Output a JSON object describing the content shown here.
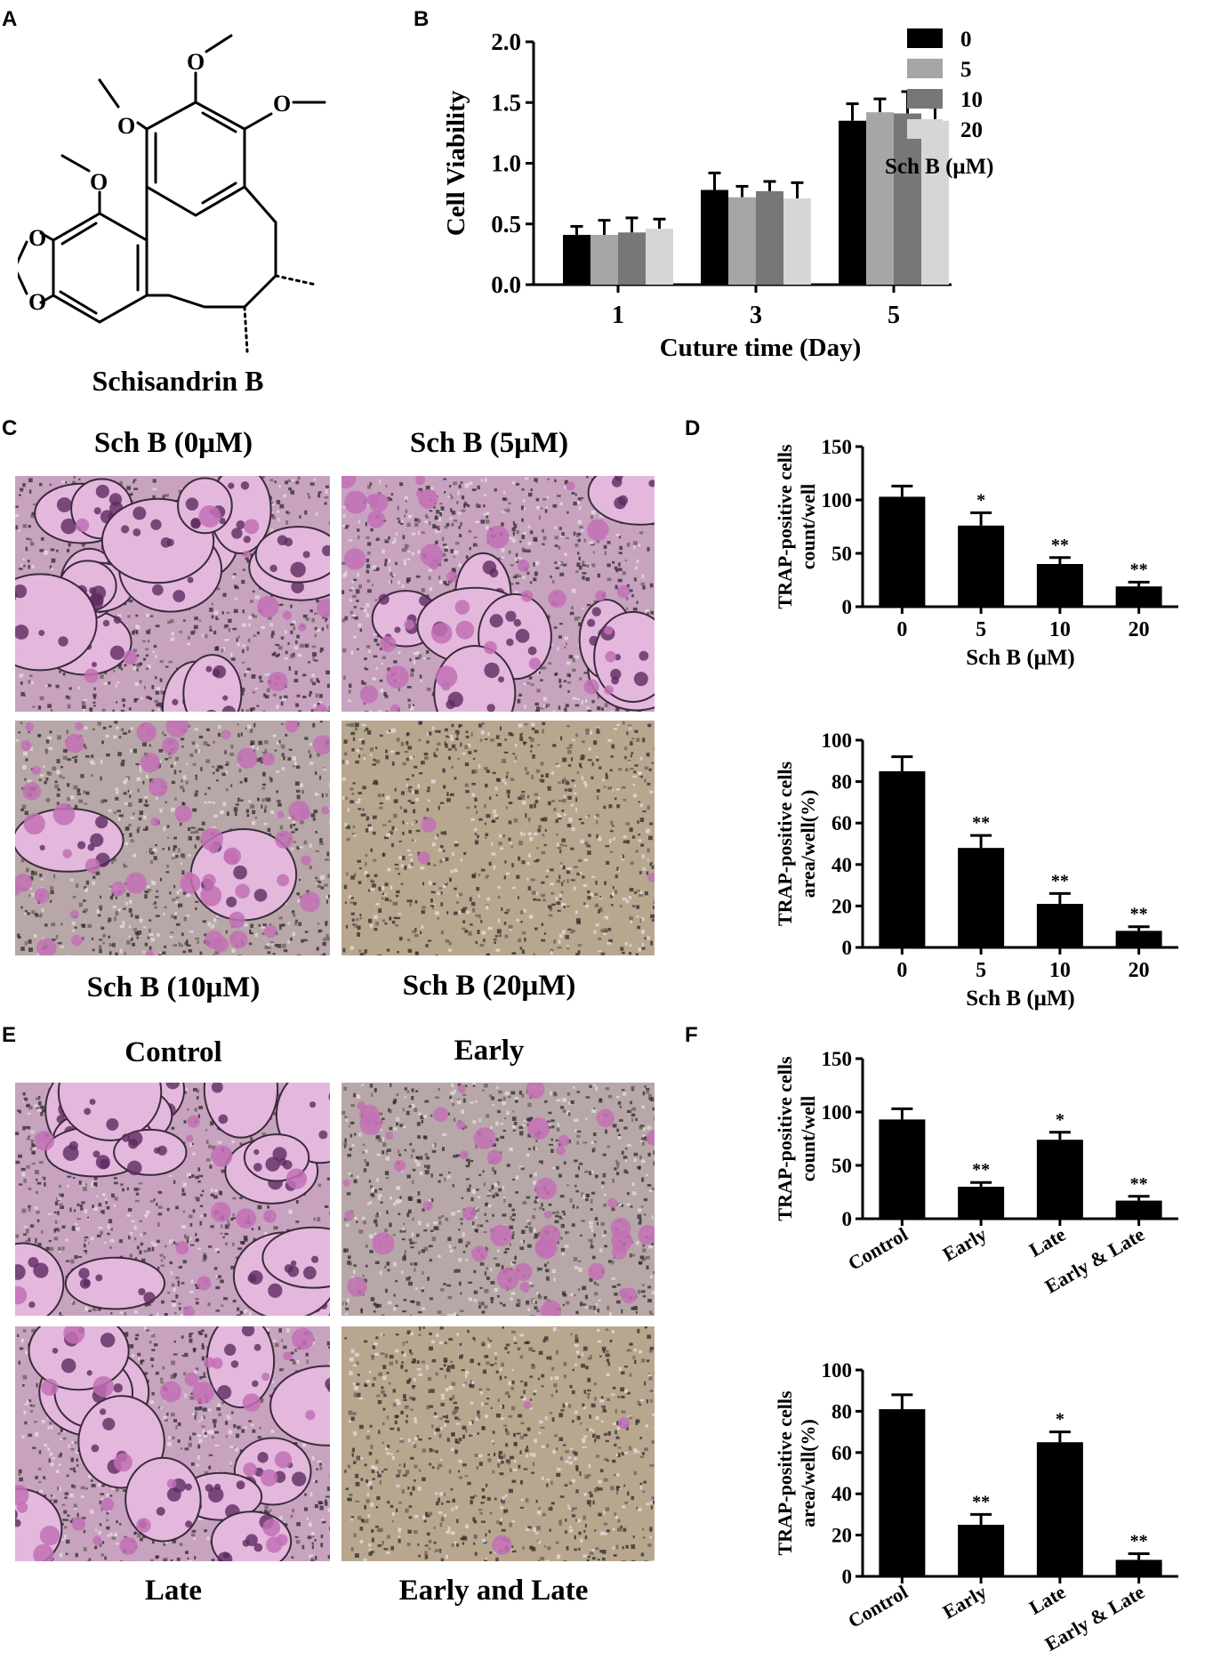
{
  "panels": {
    "A": {
      "letter": "A",
      "compound_name": "Schisandrin B"
    },
    "B": {
      "letter": "B"
    },
    "C": {
      "letter": "C",
      "captions": [
        "Sch B (0μM)",
        "Sch B (5μM)",
        "Sch B (10μM)",
        "Sch B (20μM)"
      ]
    },
    "D": {
      "letter": "D"
    },
    "E": {
      "letter": "E",
      "captions": [
        "Control",
        "Early",
        "Late",
        "Early and Late"
      ]
    },
    "F": {
      "letter": "F"
    }
  },
  "molecule_labels": {
    "methoxy": "O",
    "bridge_o": "O"
  },
  "colors": {
    "black": "#000000",
    "grey_dark": "#777777",
    "grey_mid": "#a6a6a6",
    "grey_light": "#d6d6d6",
    "stain_purple": "#7a3a78",
    "stain_pink": "#d9a3cf",
    "background_tan": "#b8a78f"
  },
  "chart_data": [
    {
      "id": "B",
      "type": "bar",
      "categories": [
        "1",
        "3",
        "5"
      ],
      "xlabel": "Cuture time (Day)",
      "ylabel": "Cell Viability",
      "ylim": [
        0,
        2.0
      ],
      "yticks": [
        "0.0",
        "0.5",
        "1.0",
        "1.5",
        "2.0"
      ],
      "legend_title": "Sch B (μM)",
      "legend_placement": "right",
      "series": [
        {
          "name": "0",
          "color": "#000000",
          "values": [
            0.41,
            0.78,
            1.35
          ],
          "errors": [
            0.07,
            0.14,
            0.14
          ]
        },
        {
          "name": "5",
          "color": "#a6a6a6",
          "values": [
            0.41,
            0.72,
            1.42
          ],
          "errors": [
            0.12,
            0.09,
            0.11
          ]
        },
        {
          "name": "10",
          "color": "#777777",
          "values": [
            0.43,
            0.77,
            1.41
          ],
          "errors": [
            0.12,
            0.08,
            0.18
          ]
        },
        {
          "name": "20",
          "color": "#d6d6d6",
          "values": [
            0.46,
            0.71,
            1.35
          ],
          "errors": [
            0.08,
            0.13,
            0.11
          ]
        }
      ]
    },
    {
      "id": "D1",
      "type": "bar",
      "categories": [
        "0",
        "5",
        "10",
        "20"
      ],
      "xlabel": "Sch B (μM)",
      "ylabel": [
        "TRAP-positive cells",
        "count/well"
      ],
      "ylim": [
        0,
        150
      ],
      "yticks": [
        "0",
        "50",
        "100",
        "150"
      ],
      "values": [
        103,
        76,
        40,
        19
      ],
      "errors": [
        10,
        12,
        6,
        4
      ],
      "significance": [
        "",
        "*",
        "**",
        "**"
      ]
    },
    {
      "id": "D2",
      "type": "bar",
      "categories": [
        "0",
        "5",
        "10",
        "20"
      ],
      "xlabel": "Sch B (μM)",
      "ylabel": [
        "TRAP-positive cells",
        "area/well(%)"
      ],
      "ylim": [
        0,
        100
      ],
      "yticks": [
        "0",
        "20",
        "40",
        "60",
        "80",
        "100"
      ],
      "values": [
        85,
        48,
        21,
        8
      ],
      "errors": [
        7,
        6,
        5,
        2
      ],
      "significance": [
        "",
        "**",
        "**",
        "**"
      ]
    },
    {
      "id": "F1",
      "type": "bar",
      "categories": [
        "Control",
        "Early",
        "Late",
        "Early & Late"
      ],
      "xlabel": "",
      "ylabel": [
        "TRAP-positive cells",
        "count/well"
      ],
      "ylim": [
        0,
        150
      ],
      "yticks": [
        "0",
        "50",
        "100",
        "150"
      ],
      "values": [
        93,
        30,
        74,
        17
      ],
      "errors": [
        10,
        4,
        7,
        4
      ],
      "significance": [
        "",
        "**",
        "*",
        "**"
      ]
    },
    {
      "id": "F2",
      "type": "bar",
      "categories": [
        "Control",
        "Early",
        "Late",
        "Early & Late"
      ],
      "xlabel": "",
      "ylabel": [
        "TRAP-positive cells",
        "area/well(%)"
      ],
      "ylim": [
        0,
        100
      ],
      "yticks": [
        "0",
        "20",
        "40",
        "60",
        "80",
        "100"
      ],
      "values": [
        81,
        25,
        65,
        8
      ],
      "errors": [
        7,
        5,
        5,
        3
      ],
      "significance": [
        "",
        "**",
        "*",
        "**"
      ]
    }
  ]
}
